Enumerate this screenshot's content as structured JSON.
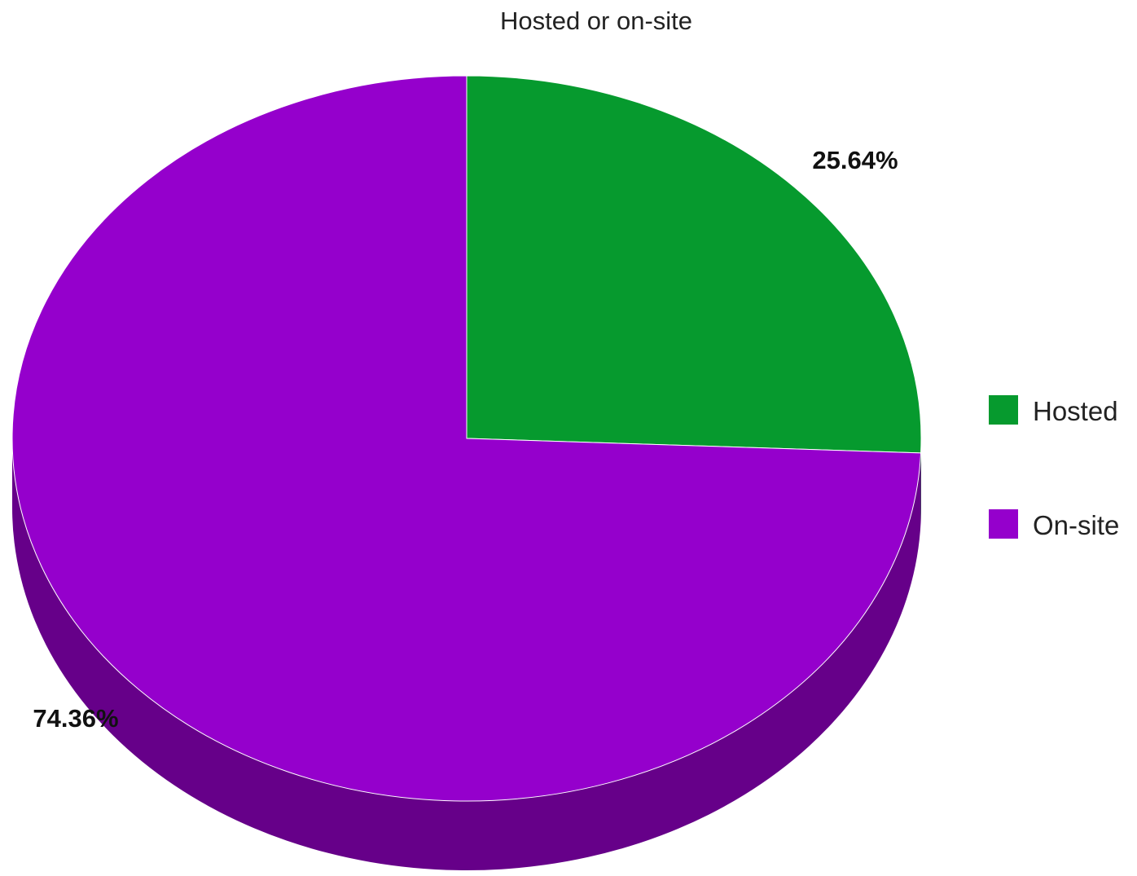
{
  "chart_data": {
    "type": "pie",
    "title": "Hosted or on-site",
    "three_d": true,
    "legend_position": "right",
    "slices": [
      {
        "name": "Hosted",
        "value": 25.64,
        "label": "25.64%",
        "color": "#069a2e",
        "side_color": "#047020"
      },
      {
        "name": "On-site",
        "value": 74.36,
        "label": "74.36%",
        "color": "#9500cc",
        "side_color": "#660089"
      }
    ]
  }
}
